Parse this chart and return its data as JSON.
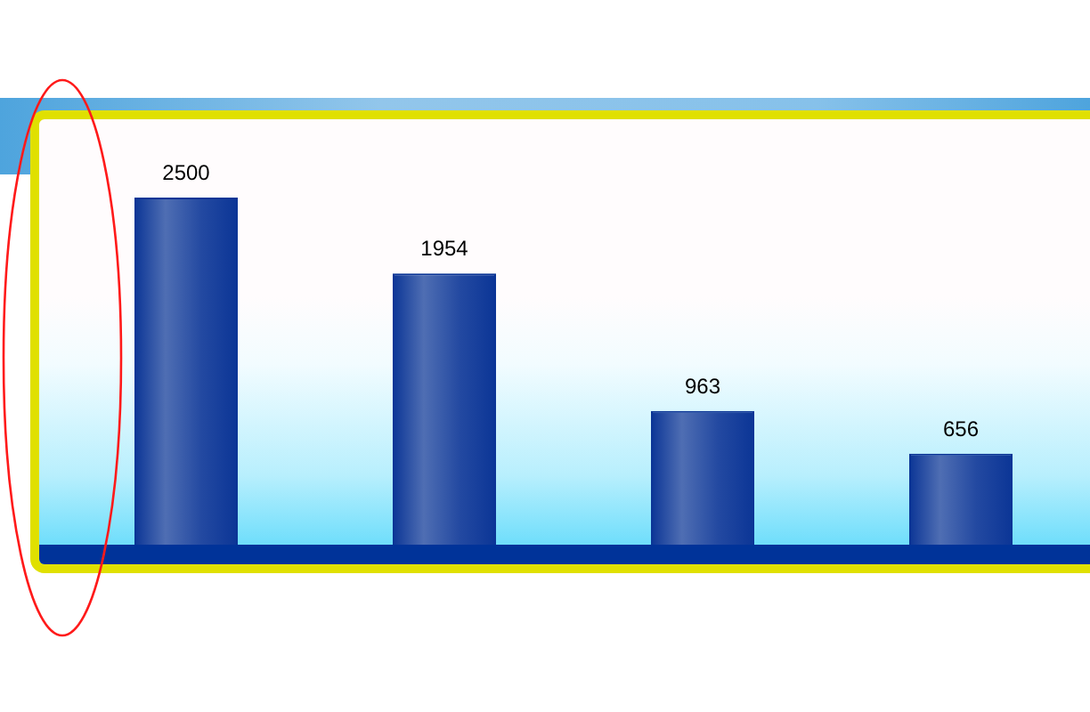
{
  "chart_data": {
    "type": "bar",
    "categories": [
      null,
      null,
      null,
      null
    ],
    "values": [
      2500,
      1954,
      963,
      656
    ],
    "color": "#0b3596",
    "data_labels": true,
    "tick_labels": false
  }
}
